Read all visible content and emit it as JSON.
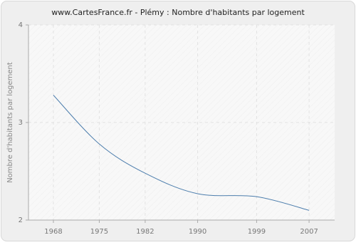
{
  "chart_data": {
    "type": "line",
    "title": "www.CartesFrance.fr - Plémy : Nombre d'habitants par logement",
    "y_label": "Nombre d'habitants par logement",
    "x": [
      1968,
      1975,
      1982,
      1990,
      1999,
      2007
    ],
    "series": [
      {
        "name": "Nombre d'habitants par logement",
        "color": "#4d7ead",
        "values": [
          3.28,
          2.78,
          2.48,
          2.27,
          2.24,
          2.1
        ]
      }
    ],
    "xlim": [
      1964.2,
      2010.9
    ],
    "xticks": [
      1968,
      1975,
      1982,
      1990,
      1999,
      2007
    ],
    "ylim": [
      2,
      4
    ],
    "yticks": [
      2,
      3,
      4
    ],
    "grid": true
  }
}
